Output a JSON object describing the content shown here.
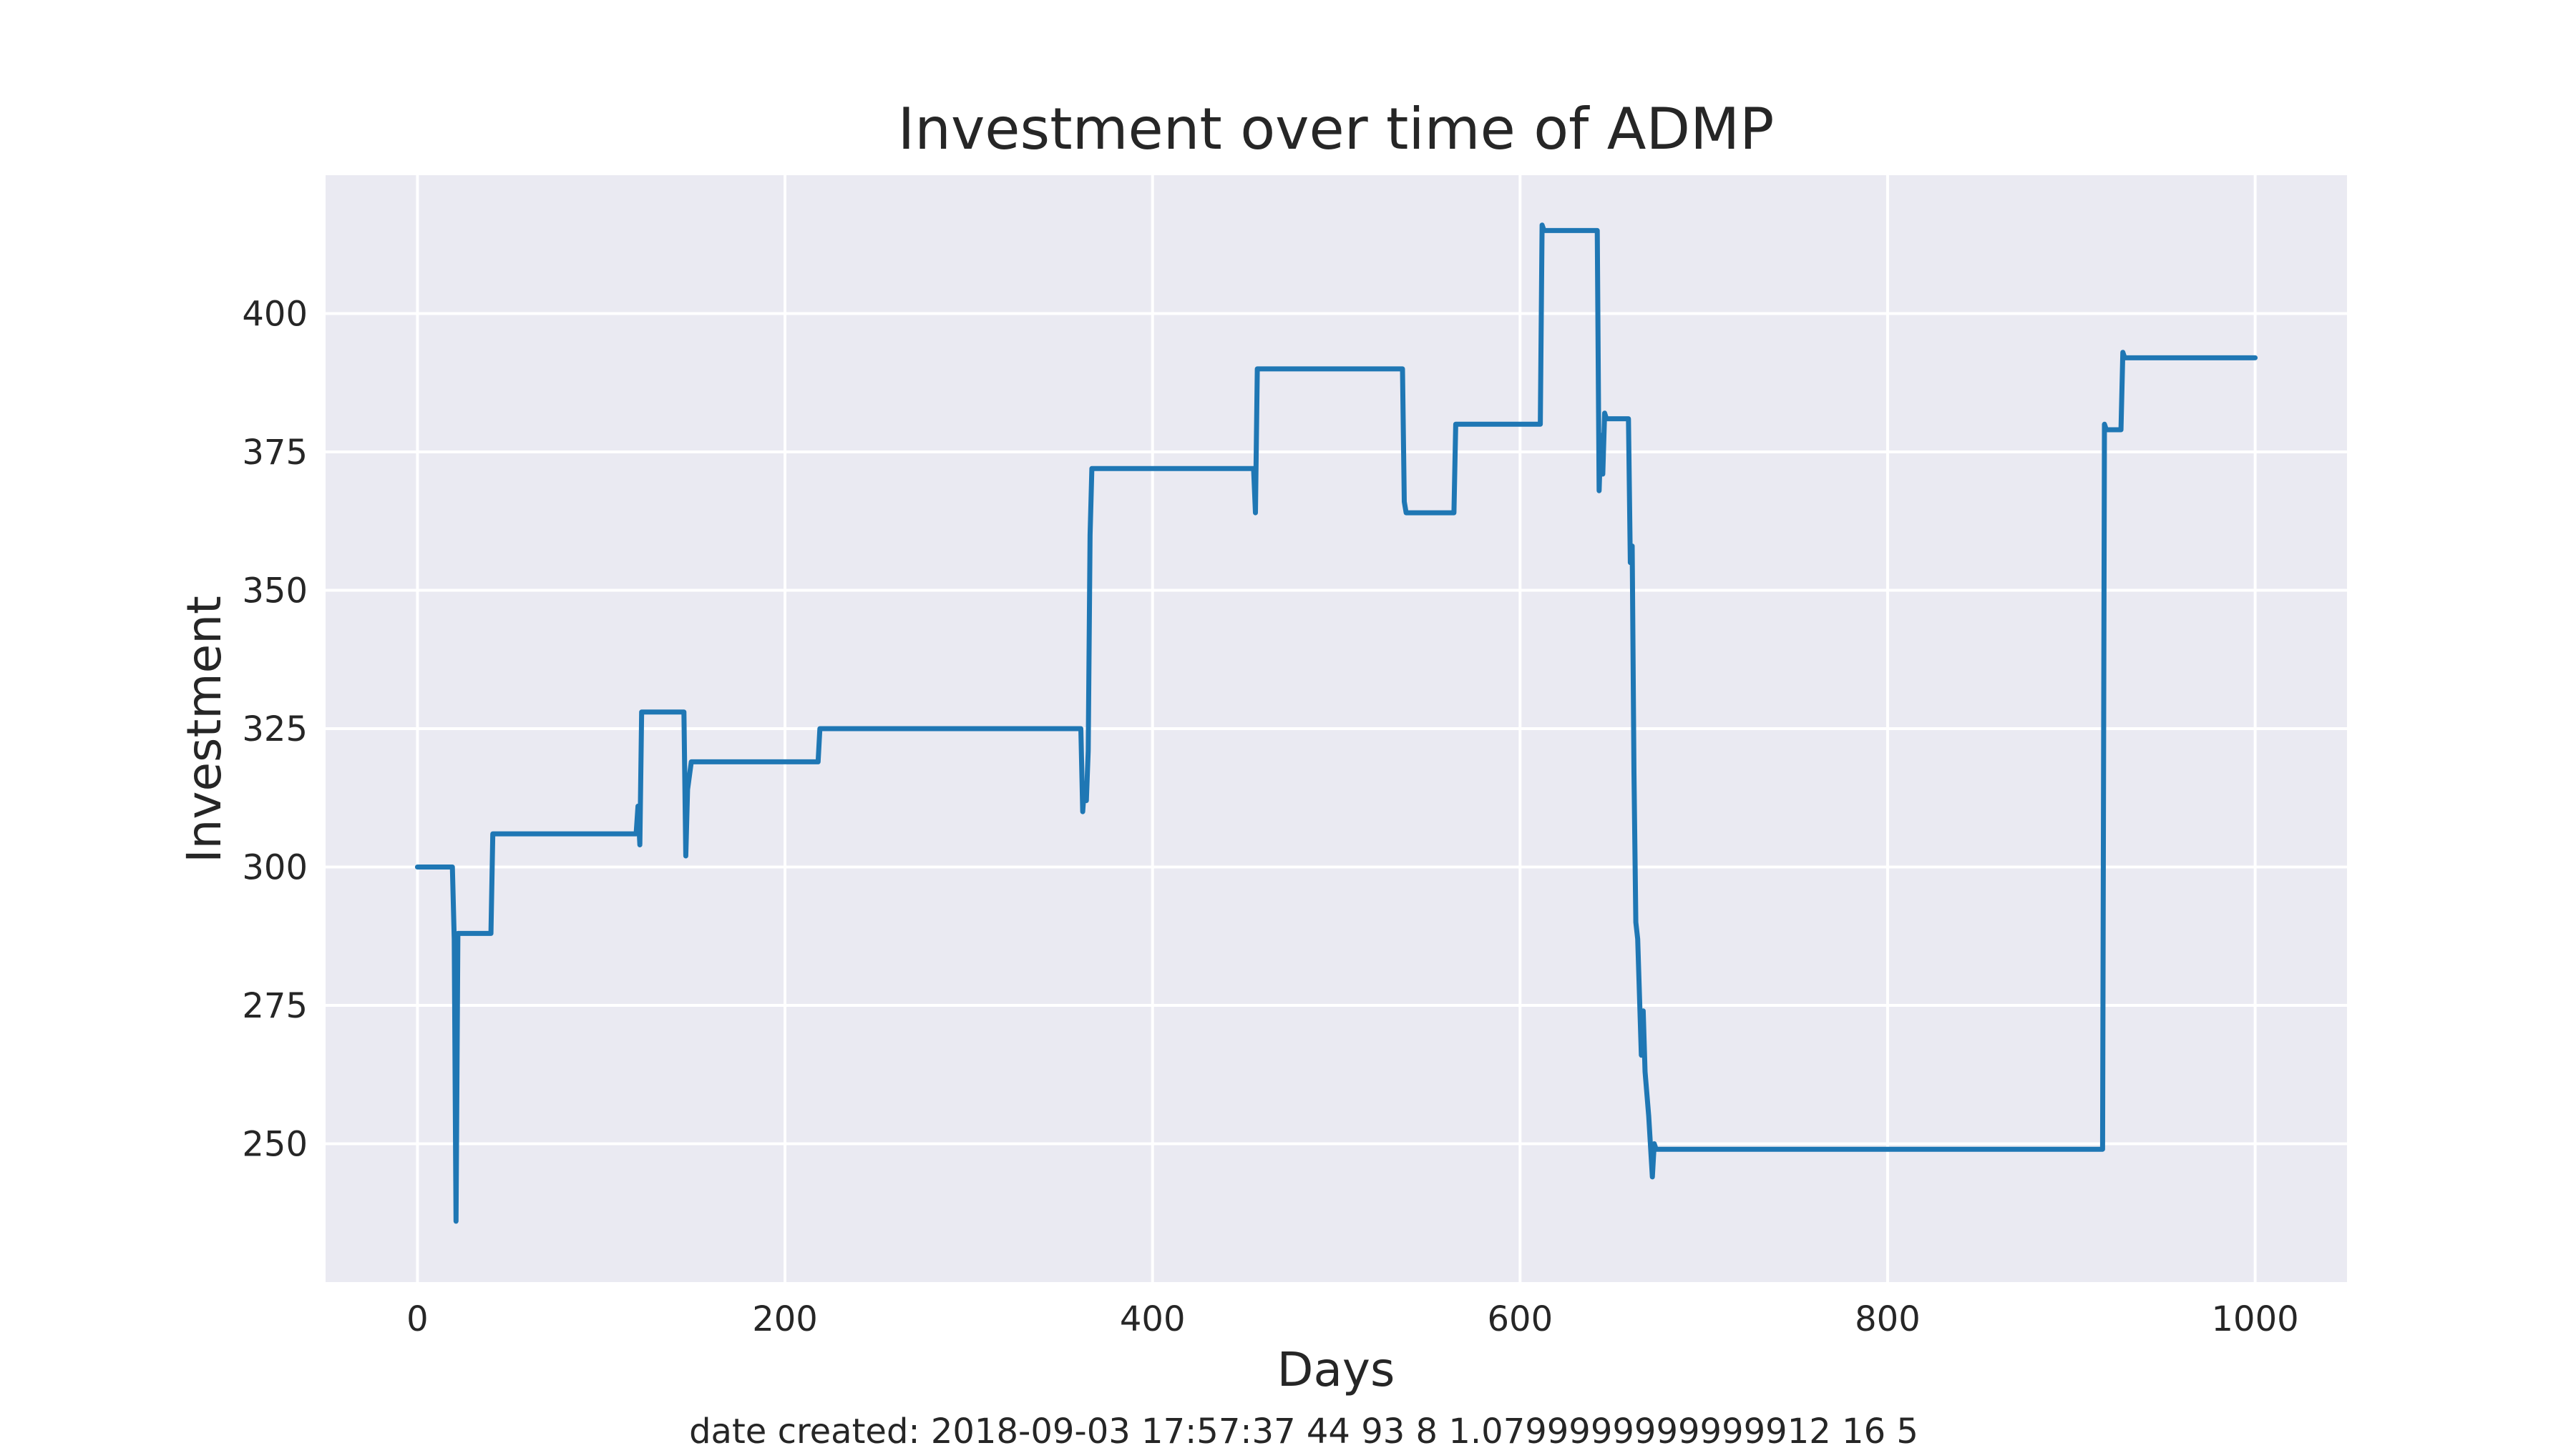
{
  "chart_data": {
    "type": "line",
    "title": "Investment over time of ADMP",
    "xlabel": "Days",
    "ylabel": "Investment",
    "footer": "date created: 2018-09-03 17:57:37 44 93 8 1.0799999999999912 16 5",
    "xlim": [
      -50,
      1050
    ],
    "ylim": [
      225,
      425
    ],
    "xticks": [
      0,
      200,
      400,
      600,
      800,
      1000
    ],
    "xtick_labels": [
      "0",
      "200",
      "400",
      "600",
      "800",
      "1000"
    ],
    "yticks": [
      250,
      275,
      300,
      325,
      350,
      375,
      400
    ],
    "ytick_labels": [
      "250",
      "275",
      "300",
      "325",
      "350",
      "375",
      "400"
    ],
    "grid": true,
    "colors": {
      "background": "#eaeaf2",
      "line": "#1f77b4",
      "grid": "#ffffff"
    },
    "series": [
      {
        "x": [
          0,
          19,
          20,
          21,
          22,
          23,
          40,
          41,
          119,
          120,
          121,
          122,
          145,
          146,
          147,
          149,
          218,
          219,
          220,
          361,
          362,
          363,
          364,
          365,
          366,
          367,
          455,
          456,
          457,
          536,
          537,
          538,
          564,
          565,
          566,
          611,
          612,
          613,
          642,
          643,
          644,
          645,
          646,
          647,
          648,
          659,
          660,
          661,
          662,
          663,
          664,
          666,
          667,
          668,
          670,
          672,
          673,
          674,
          675,
          917,
          918,
          919,
          927,
          928,
          929,
          1000
        ],
        "y": [
          300,
          300,
          287,
          236,
          288,
          288,
          288,
          306,
          306,
          311,
          304,
          328,
          328,
          302,
          314,
          319,
          319,
          325,
          325,
          325,
          310,
          315,
          312,
          321,
          360,
          372,
          372,
          364,
          390,
          390,
          366,
          364,
          364,
          380,
          380,
          380,
          416,
          415,
          415,
          368,
          378,
          371,
          382,
          381,
          381,
          381,
          355,
          358,
          317,
          290,
          287,
          266,
          274,
          263,
          255,
          244,
          250,
          249,
          249,
          249,
          380,
          379,
          379,
          393,
          392,
          392
        ]
      }
    ]
  }
}
